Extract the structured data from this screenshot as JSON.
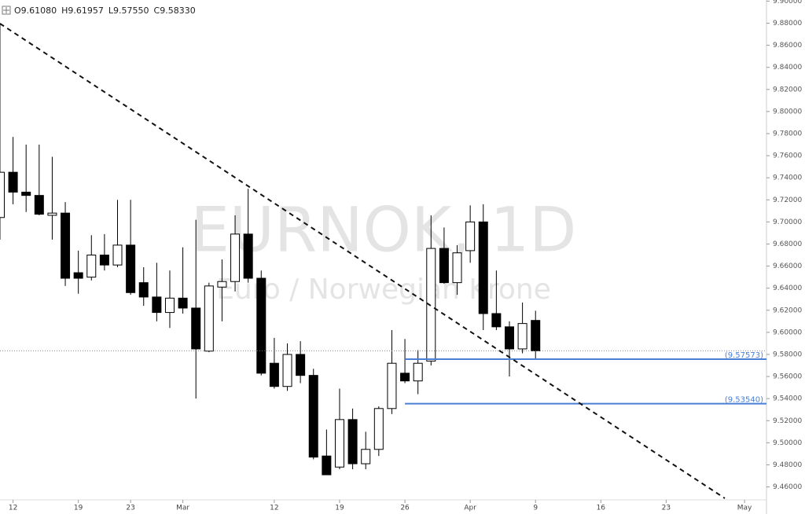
{
  "chart_data": {
    "type": "candlestick",
    "title": "EURNOK, 1D",
    "subtitle": "Euro / Norwegian Krone",
    "ohlc_legend": [
      "O9.61080",
      "H9.61957",
      "L9.57550",
      "C9.58330"
    ],
    "categories": [
      null,
      "12",
      null,
      null,
      null,
      null,
      "19",
      null,
      null,
      null,
      "23",
      null,
      null,
      null,
      "Mar",
      null,
      null,
      null,
      null,
      null,
      null,
      "12",
      null,
      null,
      null,
      null,
      "19",
      null,
      null,
      null,
      null,
      "26",
      null,
      null,
      null,
      null,
      "Apr",
      null,
      null,
      null,
      null,
      "9",
      null,
      null,
      null,
      null,
      "16",
      null,
      null,
      null,
      null,
      "23",
      null,
      null,
      null,
      null,
      null,
      "May",
      null
    ],
    "open": [
      9.704,
      9.745,
      9.727,
      9.724,
      9.706,
      9.708,
      9.654,
      9.65,
      9.67,
      9.661,
      9.679,
      9.645,
      9.632,
      9.618,
      9.631,
      9.622,
      9.583,
      9.641,
      9.646,
      9.689,
      9.649,
      9.572,
      9.551,
      9.58,
      9.561,
      9.488,
      9.478,
      9.521,
      9.481,
      9.494,
      9.531,
      9.563,
      9.556,
      9.574,
      9.676,
      9.645,
      9.674,
      9.7,
      9.617,
      9.605,
      9.585,
      9.6108,
      null,
      null,
      null,
      null,
      null,
      null,
      null,
      null,
      null,
      null,
      null,
      null,
      null,
      null,
      null,
      null,
      null
    ],
    "high": [
      9.88,
      9.777,
      9.77,
      9.77,
      9.759,
      9.718,
      9.674,
      9.688,
      9.689,
      9.72,
      9.72,
      9.659,
      9.663,
      9.656,
      9.677,
      9.702,
      9.645,
      9.666,
      9.706,
      9.73,
      9.656,
      9.595,
      9.59,
      9.592,
      9.567,
      9.512,
      9.549,
      9.531,
      9.51,
      9.533,
      9.602,
      9.594,
      9.584,
      9.706,
      9.695,
      9.679,
      9.715,
      9.716,
      9.656,
      9.61,
      9.627,
      9.61957,
      null,
      null,
      null,
      null,
      null,
      null,
      null,
      null,
      null,
      null,
      null,
      null,
      null,
      null,
      null,
      null,
      null
    ],
    "low": [
      9.684,
      9.716,
      9.709,
      9.706,
      9.684,
      9.642,
      9.635,
      9.647,
      9.656,
      9.659,
      9.634,
      9.624,
      9.61,
      9.604,
      9.617,
      9.54,
      9.582,
      9.61,
      9.637,
      9.645,
      9.561,
      9.549,
      9.547,
      9.554,
      9.485,
      9.471,
      9.476,
      9.476,
      9.476,
      9.488,
      9.526,
      9.554,
      9.544,
      9.57,
      9.644,
      9.634,
      9.663,
      9.602,
      9.602,
      9.56,
      9.581,
      9.5755,
      null,
      null,
      null,
      null,
      null,
      null,
      null,
      null,
      null,
      null,
      null,
      null,
      null,
      null,
      null,
      null,
      null
    ],
    "close": [
      9.745,
      9.727,
      9.724,
      9.707,
      9.708,
      9.649,
      9.649,
      9.67,
      9.661,
      9.679,
      9.636,
      9.632,
      9.618,
      9.631,
      9.622,
      9.585,
      9.642,
      9.646,
      9.689,
      9.649,
      9.563,
      9.551,
      9.58,
      9.561,
      9.487,
      9.471,
      9.521,
      9.481,
      9.494,
      9.531,
      9.572,
      9.556,
      9.572,
      9.676,
      9.645,
      9.672,
      9.7,
      9.617,
      9.605,
      9.585,
      9.608,
      9.5833,
      null,
      null,
      null,
      null,
      null,
      null,
      null,
      null,
      null,
      null,
      null,
      null,
      null,
      null,
      null,
      null,
      null
    ],
    "up_color": "#ffffff",
    "down_color": "#000000",
    "levels": [
      {
        "value": 9.57573,
        "label": "(9.57573)"
      },
      {
        "value": 9.5354,
        "label": "(9.53540)"
      }
    ],
    "level_color": "#4a7fd4",
    "ylim": [
      9.449,
      9.901
    ],
    "yticks": [
      {
        "value": 9.46,
        "label": "9.46000"
      },
      {
        "value": 9.48,
        "label": "9.48000"
      },
      {
        "value": 9.5,
        "label": "9.50000"
      },
      {
        "value": 9.52,
        "label": "9.52000"
      },
      {
        "value": 9.54,
        "label": "9.54000"
      },
      {
        "value": 9.56,
        "label": "9.56000"
      },
      {
        "value": 9.58,
        "label": "9.58000"
      },
      {
        "value": 9.6,
        "label": "9.60000"
      },
      {
        "value": 9.62,
        "label": "9.62000"
      },
      {
        "value": 9.64,
        "label": "9.64000"
      },
      {
        "value": 9.66,
        "label": "9.66000"
      },
      {
        "value": 9.68,
        "label": "9.68000"
      },
      {
        "value": 9.7,
        "label": "9.70000"
      },
      {
        "value": 9.72,
        "label": "9.72000"
      },
      {
        "value": 9.74,
        "label": "9.74000"
      },
      {
        "value": 9.76,
        "label": "9.76000"
      },
      {
        "value": 9.78,
        "label": "9.78000"
      },
      {
        "value": 9.8,
        "label": "9.80000"
      },
      {
        "value": 9.82,
        "label": "9.82000"
      },
      {
        "value": 9.84,
        "label": "9.84000"
      },
      {
        "value": 9.86,
        "label": "9.86000"
      },
      {
        "value": 9.88,
        "label": "9.88000"
      },
      {
        "value": 9.9,
        "label": "9.90000"
      }
    ]
  }
}
